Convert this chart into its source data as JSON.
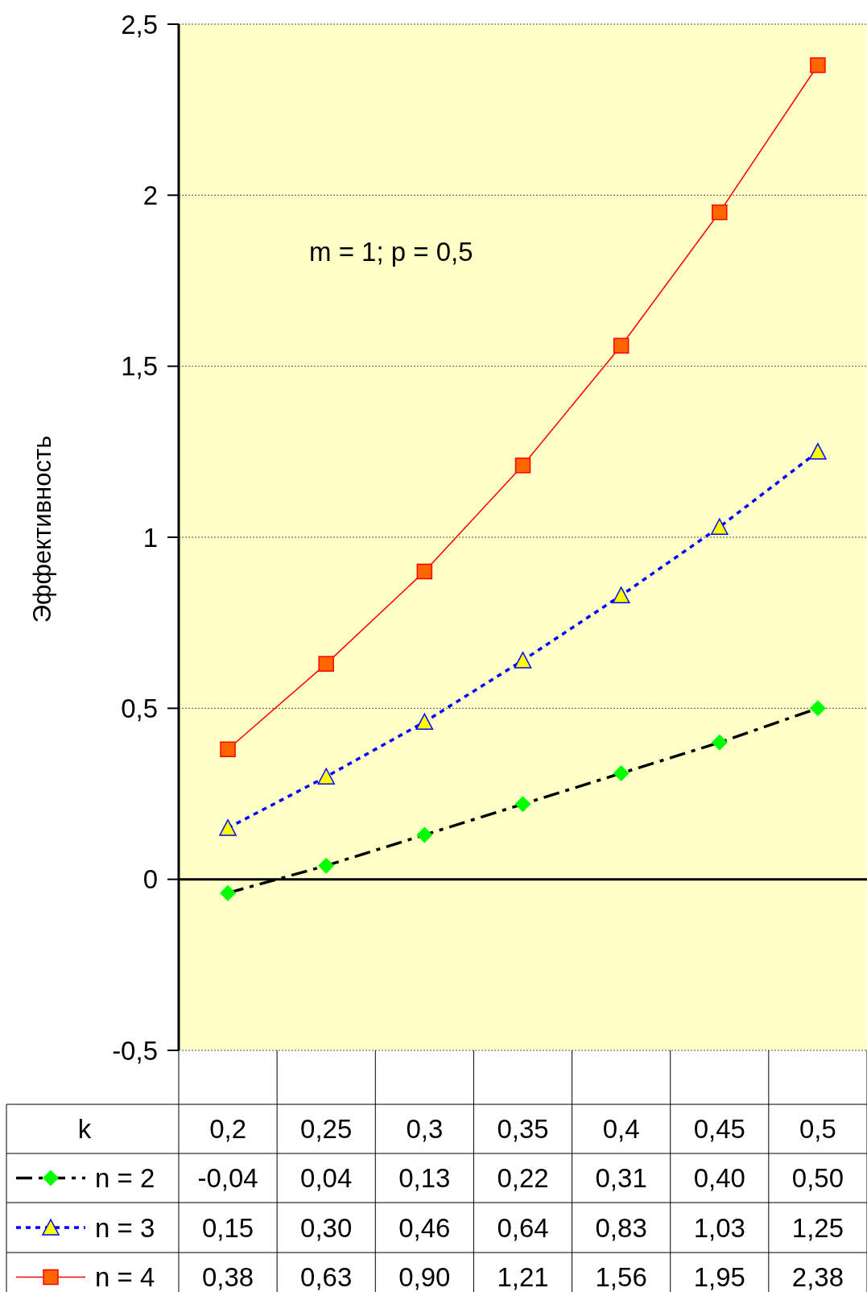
{
  "chart_data": {
    "type": "line",
    "ylabel": "Эффективность",
    "annotations": [
      "m = 1; p = 0,5"
    ],
    "xlabel": "k",
    "categories": [
      "0,2",
      "0,25",
      "0,3",
      "0,35",
      "0,4",
      "0,45",
      "0,5"
    ],
    "series": [
      {
        "name": "n = 2",
        "color": "#000000",
        "marker": "diamond",
        "line_style": "dashed",
        "values": [
          -0.04,
          0.04,
          0.13,
          0.22,
          0.31,
          0.4,
          0.5
        ],
        "value_labels": [
          "-0,04",
          "0,04",
          "0,13",
          "0,22",
          "0,31",
          "0,40",
          "0,50"
        ]
      },
      {
        "name": "n = 3",
        "color": "#0000ff",
        "marker": "triangle",
        "line_style": "dotted",
        "values": [
          0.15,
          0.3,
          0.46,
          0.64,
          0.83,
          1.03,
          1.25
        ],
        "value_labels": [
          "0,15",
          "0,30",
          "0,46",
          "0,64",
          "0,83",
          "1,03",
          "1,25"
        ]
      },
      {
        "name": "n = 4",
        "color": "#ff0000",
        "marker": "square",
        "line_style": "solid",
        "values": [
          0.38,
          0.63,
          0.9,
          1.21,
          1.56,
          1.95,
          2.38
        ],
        "value_labels": [
          "0,38",
          "0,63",
          "0,90",
          "1,21",
          "1,56",
          "1,95",
          "2,38"
        ]
      }
    ],
    "ylim": [
      -0.5,
      2.5
    ],
    "yticks": [
      {
        "value": -0.5,
        "label": "-0,5"
      },
      0,
      {
        "value": 0.5,
        "label": "0,5"
      },
      1,
      {
        "value": 1.5,
        "label": "1,5"
      },
      2,
      {
        "value": 2.5,
        "label": "2,5"
      }
    ],
    "grid": "y",
    "legend": "bottom"
  }
}
